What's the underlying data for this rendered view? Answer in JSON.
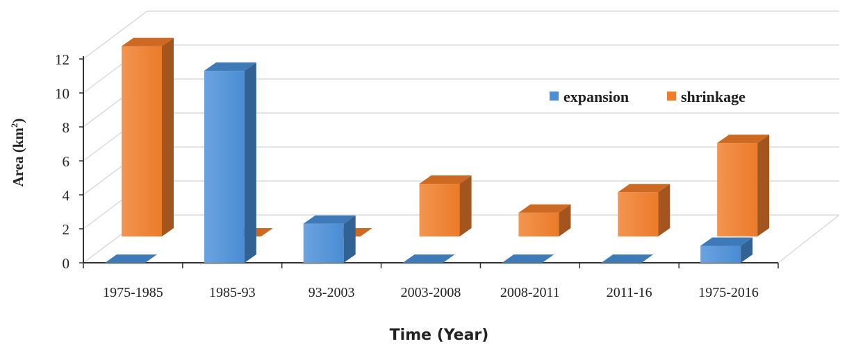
{
  "chart_data": {
    "type": "bar",
    "style": "3d-clustered-depth",
    "categories": [
      "1975-1985",
      "1985-93",
      "93-2003",
      "2003-2008",
      "2008-2011",
      "2011-16",
      "1975-2016"
    ],
    "series": [
      {
        "name": "expansion",
        "values": [
          0,
          11.3,
          2.3,
          0,
          0,
          0,
          1.0
        ],
        "color": "#4a8fd8"
      },
      {
        "name": "shrinkage",
        "values": [
          11.2,
          0,
          0,
          3.1,
          1.4,
          2.6,
          5.5
        ],
        "color": "#f07d2a"
      }
    ],
    "xlabel": "Time (Year)",
    "ylabel": "Area (km²)",
    "ylabel_main": "Area (km",
    "ylabel_sup": "2",
    "ylabel_close": ")",
    "ylim": [
      0,
      12
    ],
    "yticks": [
      "0",
      "2",
      "4",
      "6",
      "8",
      "10",
      "12"
    ],
    "grid": true,
    "legend": "top-right"
  }
}
